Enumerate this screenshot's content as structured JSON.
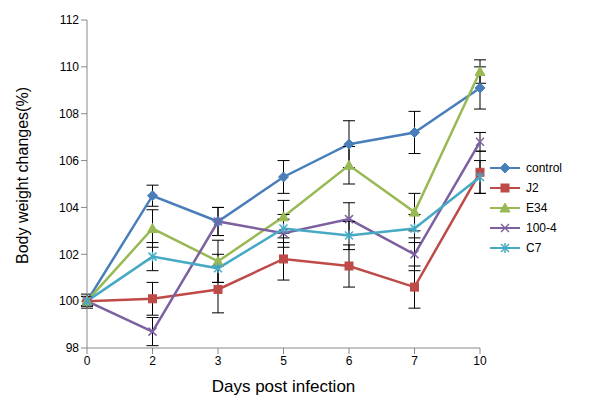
{
  "chart_data": {
    "type": "line",
    "x_label": "Days post infection",
    "y_label": "Body weight changes(%)",
    "categories": [
      "0",
      "2",
      "3",
      "5",
      "6",
      "7",
      "10"
    ],
    "ylim": [
      98,
      112
    ],
    "yticks": [
      98,
      100,
      102,
      104,
      106,
      108,
      110,
      112
    ],
    "grid": false,
    "legend": "right",
    "series": [
      {
        "name": "control",
        "color": "#4a7ebb",
        "marker": "diamond",
        "values": [
          100,
          104.5,
          103.4,
          105.3,
          106.7,
          107.2,
          109.1
        ],
        "errors": [
          0.3,
          0.45,
          0.6,
          0.7,
          1.0,
          0.9,
          0.9
        ]
      },
      {
        "name": "J2",
        "color": "#be4b48",
        "marker": "square",
        "values": [
          100,
          100.1,
          100.5,
          101.8,
          101.5,
          100.6,
          105.5
        ],
        "errors": [
          0.2,
          0.7,
          1.0,
          0.9,
          0.9,
          0.9,
          0.9
        ]
      },
      {
        "name": "E34",
        "color": "#98b954",
        "marker": "triangle",
        "values": [
          100,
          103.1,
          101.7,
          103.6,
          105.8,
          103.8,
          109.8
        ],
        "errors": [
          0.2,
          0.8,
          0.9,
          0.7,
          0.8,
          0.8,
          0.5
        ]
      },
      {
        "name": "100-4",
        "color": "#7d60a0",
        "marker": "x",
        "values": [
          100,
          98.7,
          103.4,
          102.9,
          103.5,
          102.0,
          106.8
        ],
        "errors": [
          0.2,
          0.6,
          0.6,
          0.6,
          0.7,
          0.7,
          0.4
        ]
      },
      {
        "name": "C7",
        "color": "#46aac5",
        "marker": "star",
        "values": [
          100,
          101.9,
          101.4,
          103.1,
          102.8,
          103.1,
          105.3
        ],
        "errors": [
          0.2,
          0.6,
          0.6,
          0.6,
          0.6,
          0.6,
          0.7
        ]
      }
    ]
  }
}
